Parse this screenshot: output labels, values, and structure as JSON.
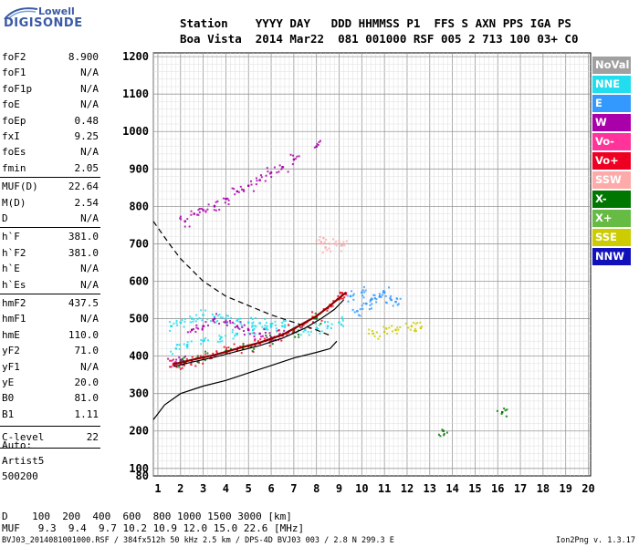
{
  "logo": {
    "top": "Lowell",
    "bottom": "DIGISONDE"
  },
  "header": {
    "row1": "Station    YYYY DAY   DDD HHMMSS P1  FFS S AXN PPS IGA PS",
    "row2": "Boa Vista  2014 Mar22  081 001000 RSF 005 2 713 100 03+ C0"
  },
  "params": [
    {
      "name": "foF2",
      "value": "8.900"
    },
    {
      "name": "foF1",
      "value": "N/A"
    },
    {
      "name": "foF1p",
      "value": "N/A"
    },
    {
      "name": "foE",
      "value": "N/A"
    },
    {
      "name": "foEp",
      "value": "0.48"
    },
    {
      "name": "fxI",
      "value": "9.25"
    },
    {
      "name": "foEs",
      "value": "N/A"
    },
    {
      "name": "fmin",
      "value": "2.05"
    },
    {
      "name": "MUF(D)",
      "value": "22.64"
    },
    {
      "name": "M(D)",
      "value": "2.54"
    },
    {
      "name": "D",
      "value": "N/A"
    },
    {
      "name": "h`F",
      "value": "381.0"
    },
    {
      "name": "h`F2",
      "value": "381.0"
    },
    {
      "name": "h`E",
      "value": "N/A"
    },
    {
      "name": "h`Es",
      "value": "N/A"
    },
    {
      "name": "hmF2",
      "value": "437.5"
    },
    {
      "name": "hmF1",
      "value": "N/A"
    },
    {
      "name": "hmE",
      "value": "110.0"
    },
    {
      "name": "yF2",
      "value": "71.0"
    },
    {
      "name": "yF1",
      "value": "N/A"
    },
    {
      "name": "yE",
      "value": "20.0"
    },
    {
      "name": "B0",
      "value": "81.0"
    },
    {
      "name": "B1",
      "value": "1.11"
    },
    {
      "name": "C-level",
      "value": "22"
    }
  ],
  "auto": {
    "label": "Auto:",
    "line1": "Artist5",
    "line2": "500200"
  },
  "legend": [
    {
      "label": "NoVal",
      "color": "#a0a0a0",
      "text_color": "#ffffff"
    },
    {
      "label": "NNE",
      "color": "#22ddee",
      "text_color": "#ffffff"
    },
    {
      "label": "E",
      "color": "#3399ff",
      "text_color": "#ffffff"
    },
    {
      "label": "W",
      "color": "#aa00aa",
      "text_color": "#ffffff"
    },
    {
      "label": "Vo-",
      "color": "#ff3399",
      "text_color": "#ffffff"
    },
    {
      "label": "Vo+",
      "color": "#ee0022",
      "text_color": "#ffffff"
    },
    {
      "label": "SSW",
      "color": "#ffaaaa",
      "text_color": "#ffffff"
    },
    {
      "label": "X-",
      "color": "#007700",
      "text_color": "#ffffff"
    },
    {
      "label": "X+",
      "color": "#66bb44",
      "text_color": "#ffffff"
    },
    {
      "label": "SSE",
      "color": "#cccc00",
      "text_color": "#ffffff"
    },
    {
      "label": "NNW",
      "color": "#1111bb",
      "text_color": "#ffffff"
    }
  ],
  "footer": {
    "d_row": "D    100  200  400  600  800 1000 1500 3000 [km]",
    "muf_row": "MUF   9.3  9.4  9.7 10.2 10.9 12.0 15.0 22.6 [MHz]",
    "file_line": "BVJ03_2014081001000.RSF / 384fx512h 50 kHz 2.5 km / DPS-4D BVJ03 003 / 2.8 N 299.3 E",
    "version": "Ion2Png v. 1.3.17"
  },
  "chart_data": {
    "type": "scatter",
    "xlim": [
      0.8,
      20.1
    ],
    "ylim": [
      80,
      1210
    ],
    "x_ticks": [
      1,
      2,
      3,
      4,
      5,
      6,
      7,
      8,
      9,
      10,
      11,
      12,
      13,
      14,
      15,
      16,
      17,
      18,
      19,
      20
    ],
    "y_ticks": [
      80,
      100,
      200,
      300,
      400,
      500,
      600,
      700,
      800,
      900,
      1000,
      1100,
      1200
    ],
    "grid": true,
    "series": [
      {
        "name": "W",
        "color": "#aa00aa",
        "points": [
          [
            1.7,
            380
          ],
          [
            2.0,
            390
          ],
          [
            2.5,
            470
          ],
          [
            3.0,
            480
          ],
          [
            3.5,
            500
          ],
          [
            4.0,
            490
          ],
          [
            4.5,
            480
          ],
          [
            5.0,
            470
          ],
          [
            5.5,
            460
          ],
          [
            6.0,
            450
          ],
          [
            6.5,
            455
          ],
          [
            2.2,
            760
          ],
          [
            2.6,
            780
          ],
          [
            3.0,
            790
          ],
          [
            3.5,
            800
          ],
          [
            4.0,
            820
          ],
          [
            4.5,
            840
          ],
          [
            5.0,
            855
          ],
          [
            5.5,
            870
          ],
          [
            6.0,
            890
          ],
          [
            6.5,
            905
          ],
          [
            7.0,
            925
          ],
          [
            8.0,
            960
          ]
        ]
      },
      {
        "name": "NNE",
        "color": "#22ddee",
        "points": [
          [
            1.6,
            480
          ],
          [
            2.0,
            490
          ],
          [
            2.5,
            500
          ],
          [
            3.0,
            510
          ],
          [
            3.5,
            505
          ],
          [
            4.0,
            500
          ],
          [
            4.5,
            495
          ],
          [
            5.0,
            490
          ],
          [
            5.5,
            488
          ],
          [
            6.0,
            485
          ],
          [
            6.5,
            480
          ],
          [
            7.0,
            475
          ],
          [
            7.5,
            470
          ],
          [
            8.0,
            475
          ],
          [
            8.5,
            480
          ],
          [
            9.0,
            490
          ],
          [
            1.8,
            420
          ],
          [
            2.3,
            430
          ],
          [
            3.0,
            440
          ],
          [
            3.8,
            450
          ],
          [
            4.5,
            460
          ],
          [
            5.2,
            470
          ],
          [
            6.0,
            480
          ]
        ]
      },
      {
        "name": "E",
        "color": "#3399ff",
        "points": [
          [
            9.5,
            560
          ],
          [
            10.0,
            570
          ],
          [
            10.4,
            550
          ],
          [
            10.8,
            560
          ],
          [
            11.0,
            570
          ],
          [
            11.3,
            550
          ],
          [
            11.5,
            545
          ],
          [
            10.2,
            540
          ],
          [
            9.8,
            520
          ]
        ]
      },
      {
        "name": "Vo+",
        "color": "#ee0022",
        "points": [
          [
            1.7,
            376
          ],
          [
            2.0,
            380
          ],
          [
            2.5,
            388
          ],
          [
            3.0,
            395
          ],
          [
            3.5,
            402
          ],
          [
            4.0,
            410
          ],
          [
            4.5,
            418
          ],
          [
            5.0,
            426
          ],
          [
            5.5,
            434
          ],
          [
            6.0,
            442
          ],
          [
            6.5,
            455
          ],
          [
            7.0,
            470
          ],
          [
            7.5,
            488
          ],
          [
            8.0,
            505
          ],
          [
            8.5,
            528
          ],
          [
            9.0,
            552
          ],
          [
            9.3,
            568
          ]
        ]
      },
      {
        "name": "X-",
        "color": "#007700",
        "points": [
          [
            2.0,
            385
          ],
          [
            3.0,
            398
          ],
          [
            4.0,
            412
          ],
          [
            5.0,
            428
          ],
          [
            6.0,
            445
          ],
          [
            7.0,
            465
          ],
          [
            8.0,
            500
          ],
          [
            13.6,
            200
          ],
          [
            16.2,
            250
          ]
        ]
      },
      {
        "name": "SSE",
        "color": "#cccc00",
        "points": [
          [
            10.5,
            460
          ],
          [
            11.0,
            465
          ],
          [
            11.5,
            470
          ],
          [
            12.2,
            480
          ],
          [
            12.6,
            475
          ]
        ]
      },
      {
        "name": "SSW",
        "color": "#ffaaaa",
        "points": [
          [
            8.4,
            690
          ],
          [
            8.8,
            700
          ],
          [
            9.1,
            695
          ],
          [
            8.2,
            705
          ]
        ]
      }
    ],
    "traces": [
      {
        "style": "profile-solid",
        "points": [
          [
            0.8,
            230
          ],
          [
            1.3,
            270
          ],
          [
            2.0,
            300
          ],
          [
            3.0,
            320
          ],
          [
            4.0,
            335
          ],
          [
            5.0,
            355
          ],
          [
            6.0,
            375
          ],
          [
            7.0,
            395
          ],
          [
            8.0,
            410
          ],
          [
            8.6,
            420
          ],
          [
            8.9,
            440
          ]
        ]
      },
      {
        "style": "profile-dashed",
        "points": [
          [
            0.8,
            760
          ],
          [
            1.5,
            700
          ],
          [
            2.0,
            660
          ],
          [
            3.0,
            600
          ],
          [
            4.0,
            560
          ],
          [
            5.0,
            535
          ],
          [
            6.0,
            510
          ],
          [
            7.0,
            490
          ],
          [
            8.0,
            470
          ],
          [
            8.6,
            455
          ]
        ]
      },
      {
        "style": "trace-dark-red",
        "points": [
          [
            1.7,
            378
          ],
          [
            2.5,
            390
          ],
          [
            3.5,
            403
          ],
          [
            4.5,
            420
          ],
          [
            5.5,
            436
          ],
          [
            6.5,
            457
          ],
          [
            7.5,
            490
          ],
          [
            8.0,
            507
          ],
          [
            8.5,
            530
          ],
          [
            9.0,
            555
          ],
          [
            9.3,
            570
          ]
        ]
      },
      {
        "style": "trace-black",
        "points": [
          [
            1.7,
            372
          ],
          [
            2.5,
            384
          ],
          [
            3.5,
            397
          ],
          [
            4.5,
            413
          ],
          [
            5.5,
            428
          ],
          [
            6.5,
            448
          ],
          [
            7.5,
            475
          ],
          [
            8.2,
            500
          ],
          [
            8.8,
            525
          ],
          [
            9.2,
            550
          ]
        ]
      }
    ]
  }
}
